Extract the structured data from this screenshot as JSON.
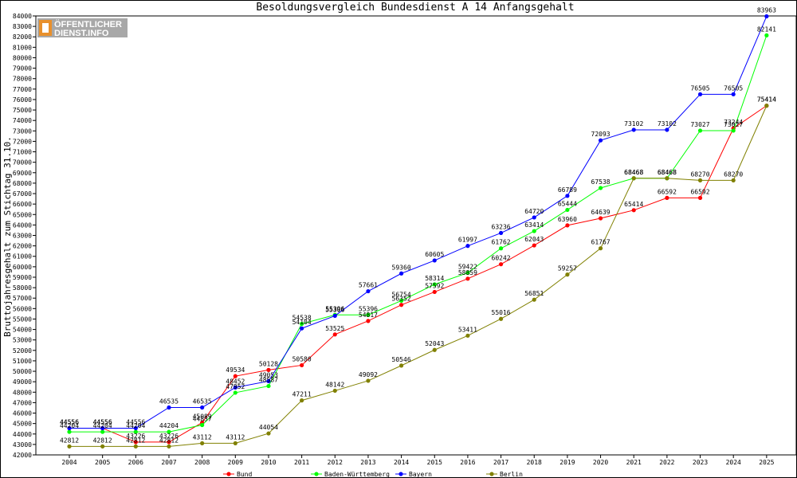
{
  "chart_data": {
    "type": "line",
    "title": "Besoldungsvergleich Bundesdienst A 14 Anfangsgehalt",
    "ylabel": "Bruttojahresgehalt zum Stichtag 31.10.",
    "xlabel": "",
    "ylim": [
      42000,
      84000
    ],
    "ystep": 1000,
    "grid": false,
    "legend_position": "bottom",
    "categories": [
      "2004",
      "2005",
      "2006",
      "2007",
      "2008",
      "2009",
      "2010",
      "2011",
      "2012",
      "2013",
      "2014",
      "2015",
      "2016",
      "2017",
      "2018",
      "2019",
      "2020",
      "2021",
      "2022",
      "2023",
      "2024",
      "2025"
    ],
    "series": [
      {
        "name": "Bund",
        "color": "#ff0000",
        "values": [
          44556,
          44556,
          43226,
          43226,
          45089,
          49534,
          50128,
          50580,
          53525,
          54817,
          56352,
          57592,
          58859,
          60242,
          62043,
          63960,
          64639,
          65414,
          66592,
          66592,
          73244,
          75414
        ]
      },
      {
        "name": "Baden-Württemberg",
        "color": "#00ff00",
        "values": [
          44204,
          44204,
          44204,
          44204,
          44857,
          47952,
          48587,
          54538,
          55396,
          55396,
          56754,
          58314,
          59422,
          61762,
          63414,
          65444,
          67538,
          68468,
          68468,
          73027,
          73027,
          82141
        ]
      },
      {
        "name": "Bayern",
        "color": "#0000ff",
        "values": [
          44556,
          44556,
          44556,
          46535,
          46535,
          48452,
          49053,
          54104,
          55306,
          57661,
          59360,
          60605,
          61997,
          63236,
          64720,
          66789,
          72093,
          73102,
          73102,
          76505,
          76505,
          83963
        ]
      },
      {
        "name": "Berlin",
        "color": "#808000",
        "values": [
          42812,
          42812,
          42812,
          42812,
          43112,
          43112,
          44054,
          47211,
          48142,
          49092,
          50546,
          52043,
          53411,
          55016,
          56851,
          59257,
          61767,
          68468,
          68468,
          68270,
          68270,
          75414
        ]
      }
    ]
  },
  "logo": {
    "line1": "ÖFFENTLICHER",
    "line2": "DIENST.INFO"
  },
  "colors": {
    "axis": "#000000",
    "border": "#000000",
    "logo_orange": "#e8902c",
    "logo_blue": "#5a7fb4"
  }
}
